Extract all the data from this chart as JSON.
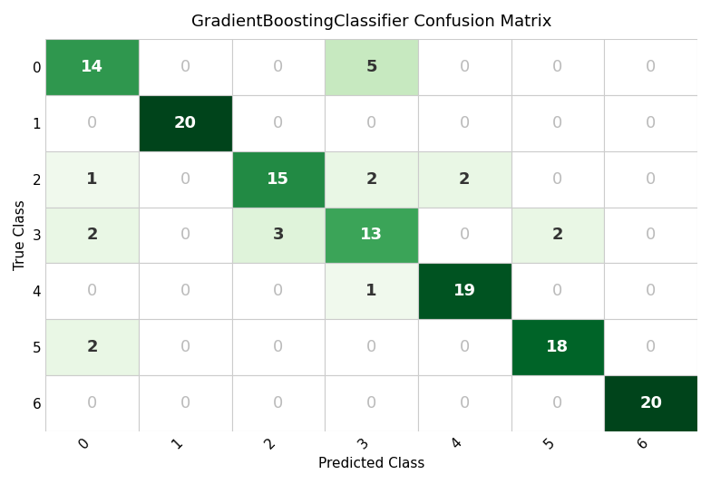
{
  "title": "GradientBoostingClassifier Confusion Matrix",
  "xlabel": "Predicted Class",
  "ylabel": "True Class",
  "matrix": [
    [
      14,
      0,
      0,
      5,
      0,
      0,
      0
    ],
    [
      0,
      20,
      0,
      0,
      0,
      0,
      0
    ],
    [
      1,
      0,
      15,
      2,
      2,
      0,
      0
    ],
    [
      2,
      0,
      3,
      13,
      0,
      2,
      0
    ],
    [
      0,
      0,
      0,
      1,
      19,
      0,
      0
    ],
    [
      2,
      0,
      0,
      0,
      0,
      18,
      0
    ],
    [
      0,
      0,
      0,
      0,
      0,
      0,
      20
    ]
  ],
  "classes": [
    "0",
    "1",
    "2",
    "3",
    "4",
    "5",
    "6"
  ],
  "colormap": "Greens",
  "zero_text_color": "#bbbbbb",
  "white_cell_color": "#ffffff",
  "diag_text_color": "#ffffff",
  "off_diag_nonzero_text_color": "#333333",
  "cell_border_color": "#cccccc",
  "title_fontsize": 13,
  "axis_label_fontsize": 11,
  "tick_fontsize": 11,
  "cell_fontsize": 13,
  "figsize": [
    7.84,
    5.34
  ],
  "dpi": 100
}
